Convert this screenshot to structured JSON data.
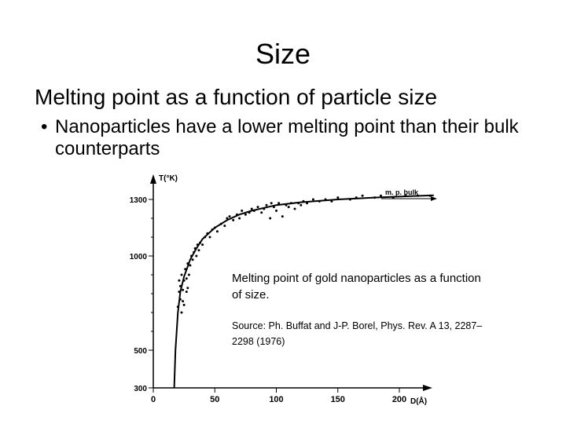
{
  "slide": {
    "title": "Size",
    "subtitle": "Melting point as a function of particle size",
    "bullet_marker": "•",
    "bullet": "Nanoparticles have a lower melting point than their bulk counterparts",
    "caption": "Melting point of gold nanoparticles as a function of size.",
    "source": "Source: Ph. Buffat and J-P. Borel, Phys. Rev. A 13, 2287–2298 (1976)"
  },
  "chart_data": {
    "type": "scatter",
    "xlabel": "D(Å)",
    "ylabel": "T(°K)",
    "annotation": "m. p. bulk",
    "xlim": [
      0,
      230
    ],
    "ylim": [
      300,
      1400
    ],
    "x_ticks": [
      0,
      50,
      100,
      150,
      200
    ],
    "y_ticks": [
      300,
      500,
      1000,
      1300
    ],
    "bulk_melting_point": 1336,
    "grid": false,
    "points": [
      [
        20,
        730
      ],
      [
        21,
        810
      ],
      [
        21,
        870
      ],
      [
        22,
        770
      ],
      [
        22,
        840
      ],
      [
        23,
        700
      ],
      [
        23,
        900
      ],
      [
        24,
        760
      ],
      [
        24,
        820
      ],
      [
        25,
        870
      ],
      [
        25,
        740
      ],
      [
        26,
        930
      ],
      [
        27,
        810
      ],
      [
        27,
        880
      ],
      [
        28,
        960
      ],
      [
        28,
        830
      ],
      [
        29,
        900
      ],
      [
        30,
        950
      ],
      [
        31,
        1000
      ],
      [
        32,
        980
      ],
      [
        33,
        1020
      ],
      [
        34,
        1040
      ],
      [
        35,
        1000
      ],
      [
        36,
        1060
      ],
      [
        37,
        1030
      ],
      [
        38,
        1070
      ],
      [
        40,
        1060
      ],
      [
        42,
        1100
      ],
      [
        44,
        1120
      ],
      [
        46,
        1100
      ],
      [
        48,
        1140
      ],
      [
        50,
        1150
      ],
      [
        52,
        1130
      ],
      [
        55,
        1170
      ],
      [
        58,
        1160
      ],
      [
        60,
        1200
      ],
      [
        62,
        1210
      ],
      [
        65,
        1190
      ],
      [
        68,
        1220
      ],
      [
        70,
        1200
      ],
      [
        72,
        1240
      ],
      [
        75,
        1220
      ],
      [
        78,
        1230
      ],
      [
        80,
        1250
      ],
      [
        82,
        1240
      ],
      [
        85,
        1260
      ],
      [
        88,
        1230
      ],
      [
        90,
        1250
      ],
      [
        92,
        1270
      ],
      [
        95,
        1200
      ],
      [
        96,
        1280
      ],
      [
        98,
        1260
      ],
      [
        100,
        1240
      ],
      [
        102,
        1280
      ],
      [
        105,
        1210
      ],
      [
        108,
        1270
      ],
      [
        110,
        1260
      ],
      [
        112,
        1280
      ],
      [
        115,
        1250
      ],
      [
        118,
        1280
      ],
      [
        120,
        1270
      ],
      [
        122,
        1290
      ],
      [
        125,
        1280
      ],
      [
        130,
        1300
      ],
      [
        135,
        1290
      ],
      [
        140,
        1300
      ],
      [
        145,
        1290
      ],
      [
        150,
        1310
      ],
      [
        160,
        1300
      ],
      [
        165,
        1310
      ],
      [
        170,
        1320
      ],
      [
        180,
        1310
      ],
      [
        185,
        1320
      ],
      [
        195,
        1310
      ],
      [
        205,
        1320
      ],
      [
        215,
        1320
      ],
      [
        225,
        1320
      ]
    ],
    "fit_curve": [
      [
        17,
        300
      ],
      [
        18,
        500
      ],
      [
        20,
        700
      ],
      [
        22,
        810
      ],
      [
        25,
        890
      ],
      [
        30,
        980
      ],
      [
        35,
        1040
      ],
      [
        40,
        1090
      ],
      [
        50,
        1150
      ],
      [
        60,
        1190
      ],
      [
        70,
        1220
      ],
      [
        80,
        1240
      ],
      [
        100,
        1270
      ],
      [
        120,
        1285
      ],
      [
        150,
        1300
      ],
      [
        180,
        1310
      ],
      [
        210,
        1318
      ],
      [
        228,
        1322
      ]
    ]
  }
}
